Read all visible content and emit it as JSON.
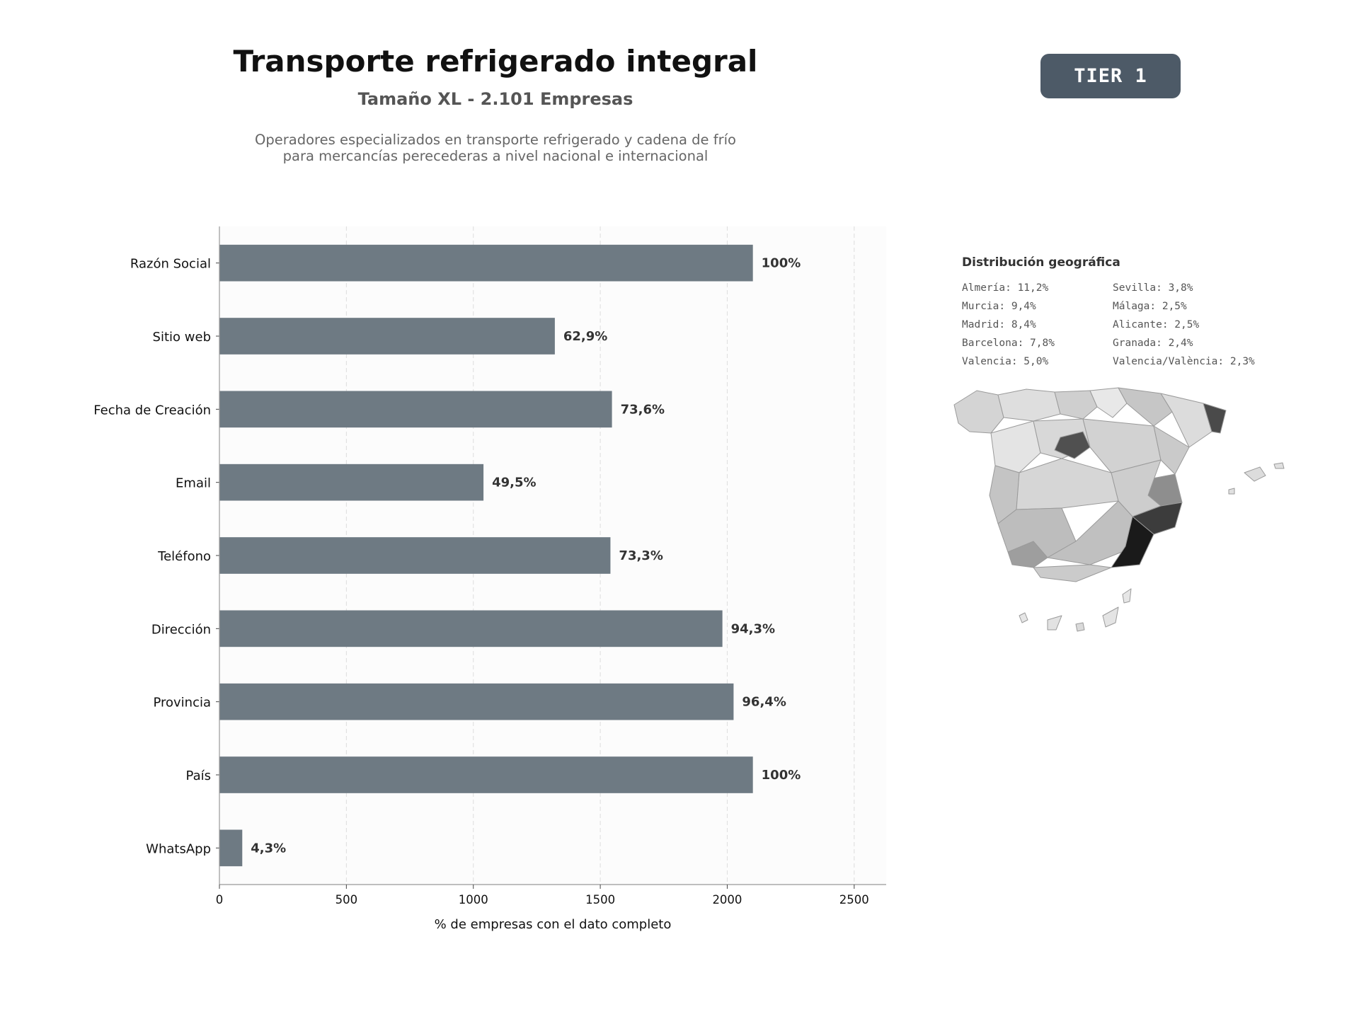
{
  "header": {
    "title": "Transporte refrigerado integral",
    "subtitle": "Tamaño XL - 2.101 Empresas",
    "description_line1": "Operadores especializados en transporte refrigerado y cadena de frío",
    "description_line2": "para mercancías perecederas a nivel nacional e internacional",
    "tier_badge": "TIER 1"
  },
  "colors": {
    "bar": "#6e7a83",
    "plot_bg": "#fcfcfc",
    "badge": "#4d5a67"
  },
  "chart_data": {
    "type": "bar",
    "orientation": "horizontal",
    "categories": [
      "Razón Social",
      "Sitio web",
      "Fecha de Creación",
      "Email",
      "Teléfono",
      "Dirección",
      "Provincia",
      "País",
      "WhatsApp"
    ],
    "values": [
      2101,
      1321,
      1546,
      1040,
      1540,
      1981,
      2025,
      2101,
      90
    ],
    "data_labels": [
      "100%",
      "62,9%",
      "73,6%",
      "49,5%",
      "73,3%",
      "94,3%",
      "96,4%",
      "100%",
      "4,3%"
    ],
    "xlabel": "% de empresas con el dato completo",
    "ylabel": "",
    "xlim": [
      0,
      2626
    ],
    "xticks": [
      0,
      500,
      1000,
      1500,
      2000,
      2500
    ],
    "grid": "vertical dashed"
  },
  "geo": {
    "title": "Distribución geográfica",
    "items": [
      "Almería: 11,2%",
      "Sevilla: 3,8%",
      "Murcia: 9,4%",
      "Málaga: 2,5%",
      "Madrid: 8,4%",
      "Alicante: 2,5%",
      "Barcelona: 7,8%",
      "Granada: 2,4%",
      "Valencia: 5,0%",
      "Valencia/València: 2,3%"
    ]
  }
}
